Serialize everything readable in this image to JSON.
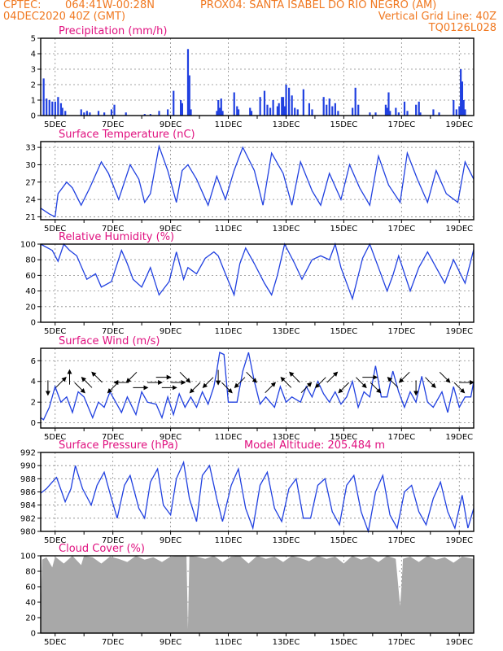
{
  "header": {
    "line1_left": "CPTEC:",
    "line1_mid": "064:41W-00:28N",
    "line1_right": "PROX04: SANTA ISABEL DO RIO NEGRO (AM)",
    "line2_left": "04DEC2020 40Z (GMT)",
    "line2_right": "Vertical Grid Line: 40Z",
    "line3_right": "TQ0126L028"
  },
  "colors": {
    "header": "#f07820",
    "title": "#e0107f",
    "line": "#2040e0",
    "cloud": "#a8a8a8",
    "grid": "#888888"
  },
  "chart_data": [
    {
      "type": "bar",
      "title": "Precipitation (mm/h)",
      "ylim": [
        0,
        5
      ],
      "yticks": [
        0,
        1,
        2,
        3,
        4,
        5
      ],
      "x_labels": [
        "5DEC",
        "7DEC",
        "9DEC",
        "11DEC",
        "13DEC",
        "15DEC",
        "17DEC",
        "19DEC"
      ],
      "x_days": [
        4.5,
        19.5
      ],
      "x_label_days": [
        5,
        7,
        9,
        11,
        13,
        15,
        17,
        19
      ],
      "series": [
        {
          "x": [
            4.6,
            4.7,
            4.8,
            4.9,
            5.0,
            5.1,
            5.2,
            5.25,
            5.35,
            5.9,
            6.0,
            6.1,
            6.2,
            6.5,
            6.7,
            6.95,
            7.05,
            7.45,
            8.1,
            8.3,
            8.6,
            8.9,
            9.1,
            9.35,
            9.4,
            9.6,
            9.65,
            9.7,
            10.6,
            10.65,
            10.7,
            10.75,
            10.8,
            11.2,
            11.3,
            11.35,
            11.75,
            11.8,
            12.1,
            12.25,
            12.35,
            12.45,
            12.55,
            12.7,
            12.75,
            12.85,
            12.9,
            12.95,
            13.0,
            13.1,
            13.2,
            13.3,
            13.4,
            13.6,
            13.8,
            13.9,
            14.3,
            14.4,
            14.5,
            14.6,
            14.7,
            14.8,
            15.3,
            15.4,
            15.5,
            15.9,
            16.1,
            16.45,
            16.5,
            16.55,
            16.6,
            16.8,
            16.9,
            17.1,
            17.2,
            17.5,
            17.6,
            17.65,
            18.1,
            18.3,
            18.8,
            18.9,
            19.0,
            19.05,
            19.1,
            19.15,
            19.2
          ],
          "values": [
            2.4,
            1.1,
            1.0,
            0.9,
            0.9,
            1.2,
            0.8,
            0.5,
            0.3,
            0.4,
            0.2,
            0.3,
            0.2,
            0.3,
            0.2,
            0.4,
            0.7,
            0.2,
            0.1,
            0.1,
            0.3,
            0.4,
            1.6,
            1.0,
            0.8,
            4.3,
            2.6,
            0.4,
            0.3,
            1.0,
            0.5,
            1.1,
            0.3,
            1.5,
            0.6,
            0.4,
            0.5,
            0.3,
            1.2,
            1.6,
            0.7,
            0.5,
            1.0,
            0.6,
            0.8,
            1.2,
            1.2,
            0.6,
            2.0,
            1.8,
            1.3,
            0.5,
            0.4,
            1.7,
            0.8,
            0.4,
            1.2,
            0.7,
            1.1,
            0.6,
            0.8,
            0.3,
            0.5,
            1.8,
            0.7,
            0.2,
            0.2,
            0.7,
            0.5,
            1.5,
            0.3,
            0.5,
            0.2,
            0.9,
            0.3,
            0.7,
            0.9,
            0.2,
            0.4,
            0.2,
            1.0,
            0.4,
            0.6,
            3.0,
            2.2,
            1.0,
            0.4
          ]
        }
      ]
    },
    {
      "type": "line",
      "title": "Surface Temperature (nC)",
      "ylim": [
        20.5,
        34
      ],
      "yticks": [
        21,
        24,
        27,
        30,
        33
      ],
      "x_labels": [
        "5DEC",
        "7DEC",
        "9DEC",
        "11DEC",
        "13DEC",
        "15DEC",
        "17DEC",
        "19DEC"
      ],
      "series": [
        {
          "x": [
            4.5,
            4.8,
            5.0,
            5.1,
            5.4,
            5.6,
            5.9,
            6.2,
            6.6,
            6.85,
            7.2,
            7.6,
            7.9,
            8.1,
            8.3,
            8.6,
            8.9,
            9.2,
            9.4,
            9.6,
            9.9,
            10.3,
            10.6,
            10.9,
            11.2,
            11.5,
            11.9,
            12.2,
            12.5,
            12.9,
            13.2,
            13.5,
            13.9,
            14.2,
            14.5,
            14.9,
            15.2,
            15.55,
            15.9,
            16.2,
            16.55,
            16.95,
            17.2,
            17.55,
            17.9,
            18.2,
            18.55,
            18.95,
            19.2,
            19.5
          ],
          "values": [
            22.5,
            21.5,
            21.0,
            25.0,
            27.0,
            26.0,
            23.0,
            26.0,
            30.5,
            28.5,
            24.0,
            30.0,
            27.5,
            23.5,
            25.0,
            33.2,
            29.0,
            23.5,
            29.0,
            30.0,
            27.5,
            23.0,
            28.0,
            24.0,
            29.0,
            33.0,
            29.0,
            23.0,
            32.0,
            28.5,
            23.0,
            30.5,
            25.5,
            23.0,
            28.5,
            24.0,
            30.0,
            26.0,
            23.0,
            31.5,
            26.5,
            23.5,
            32.0,
            27.5,
            23.5,
            29.0,
            25.0,
            23.5,
            30.5,
            27.5
          ]
        }
      ]
    },
    {
      "type": "line",
      "title": "Relative Humidity (%)",
      "ylim": [
        0,
        100
      ],
      "yticks": [
        0,
        20,
        40,
        60,
        80,
        100
      ],
      "x_labels": [
        "5DEC",
        "7DEC",
        "9DEC",
        "11DEC",
        "13DEC",
        "15DEC",
        "17DEC",
        "19DEC"
      ],
      "series": [
        {
          "x": [
            4.5,
            4.9,
            5.1,
            5.3,
            5.5,
            5.75,
            6.1,
            6.4,
            6.6,
            6.95,
            7.3,
            7.5,
            7.7,
            8.0,
            8.3,
            8.6,
            8.95,
            9.2,
            9.45,
            9.6,
            9.9,
            10.2,
            10.5,
            10.65,
            10.9,
            11.2,
            11.4,
            11.6,
            11.9,
            12.25,
            12.5,
            12.7,
            12.95,
            13.3,
            13.55,
            13.9,
            14.2,
            14.5,
            14.7,
            14.9,
            15.3,
            15.65,
            15.9,
            16.2,
            16.5,
            16.7,
            16.9,
            17.3,
            17.6,
            17.9,
            18.2,
            18.5,
            18.8,
            19.2,
            19.5
          ],
          "values": [
            100,
            92,
            78,
            100,
            92,
            85,
            55,
            62,
            45,
            52,
            92,
            75,
            55,
            45,
            70,
            35,
            52,
            90,
            55,
            70,
            62,
            82,
            90,
            85,
            62,
            35,
            75,
            95,
            75,
            50,
            35,
            60,
            100,
            75,
            55,
            80,
            85,
            80,
            100,
            70,
            30,
            82,
            100,
            70,
            40,
            60,
            85,
            40,
            70,
            90,
            70,
            50,
            80,
            50,
            93
          ]
        }
      ]
    },
    {
      "type": "line",
      "title": "Surface Wind (m/s)",
      "ylim": [
        -0.5,
        7.2
      ],
      "yticks": [
        0,
        2,
        4,
        6
      ],
      "x_labels": [
        "5DEC",
        "7DEC",
        "9DEC",
        "11DEC",
        "13DEC",
        "15DEC",
        "17DEC",
        "19DEC"
      ],
      "series": [
        {
          "x": [
            4.5,
            4.6,
            4.8,
            5.0,
            5.2,
            5.4,
            5.6,
            5.8,
            6.0,
            6.3,
            6.5,
            6.7,
            6.9,
            7.1,
            7.3,
            7.5,
            7.8,
            8.0,
            8.2,
            8.5,
            8.7,
            8.9,
            9.1,
            9.3,
            9.5,
            9.7,
            9.9,
            10.1,
            10.3,
            10.5,
            10.6,
            10.7,
            10.85,
            11.0,
            11.3,
            11.5,
            11.7,
            11.9,
            12.1,
            12.3,
            12.6,
            12.8,
            13.0,
            13.2,
            13.5,
            13.7,
            13.9,
            14.1,
            14.3,
            14.5,
            14.7,
            14.9,
            15.1,
            15.3,
            15.5,
            15.7,
            15.9,
            16.1,
            16.3,
            16.5,
            16.7,
            16.9,
            17.1,
            17.3,
            17.5,
            17.7,
            17.9,
            18.1,
            18.4,
            18.6,
            18.8,
            19.0,
            19.2,
            19.4,
            19.5
          ],
          "values": [
            0.5,
            0.3,
            1.5,
            3.5,
            2.0,
            2.5,
            1.0,
            3.0,
            2.5,
            0.5,
            2.0,
            1.5,
            3.0,
            2.0,
            1.0,
            2.5,
            0.8,
            3.0,
            2.0,
            1.8,
            0.5,
            2.5,
            0.8,
            2.8,
            1.5,
            2.5,
            1.5,
            3.0,
            1.8,
            3.5,
            5.0,
            6.8,
            6.6,
            2.0,
            2.0,
            5.0,
            6.8,
            4.0,
            1.8,
            2.5,
            1.5,
            3.5,
            2.0,
            2.5,
            2.0,
            3.5,
            2.5,
            4.0,
            2.8,
            2.0,
            3.0,
            1.8,
            2.5,
            4.0,
            1.5,
            3.0,
            2.5,
            5.5,
            2.5,
            2.5,
            5.0,
            3.0,
            1.5,
            3.0,
            2.0,
            4.5,
            2.0,
            1.5,
            3.0,
            1.0,
            3.5,
            1.5,
            2.5,
            2.5,
            4.0
          ]
        }
      ],
      "vectors": [
        {
          "x": 4.75,
          "dir": "S"
        },
        {
          "x": 5.2,
          "dir": "NE"
        },
        {
          "x": 5.5,
          "dir": "N"
        },
        {
          "x": 5.85,
          "dir": "SE"
        },
        {
          "x": 6.1,
          "dir": "NW"
        },
        {
          "x": 6.45,
          "dir": "NW"
        },
        {
          "x": 7.0,
          "dir": "SW"
        },
        {
          "x": 7.3,
          "dir": "W"
        },
        {
          "x": 7.65,
          "dir": "SW"
        },
        {
          "x": 7.95,
          "dir": "E"
        },
        {
          "x": 8.45,
          "dir": "E"
        },
        {
          "x": 8.75,
          "dir": "E"
        },
        {
          "x": 8.95,
          "dir": "E"
        },
        {
          "x": 9.25,
          "dir": "E"
        },
        {
          "x": 9.5,
          "dir": "SE"
        },
        {
          "x": 9.85,
          "dir": "SW"
        },
        {
          "x": 10.3,
          "dir": "SW"
        },
        {
          "x": 10.65,
          "dir": "S"
        },
        {
          "x": 10.95,
          "dir": "SE"
        },
        {
          "x": 11.4,
          "dir": "SW"
        },
        {
          "x": 11.8,
          "dir": "SE"
        },
        {
          "x": 12.45,
          "dir": "NE"
        },
        {
          "x": 13.0,
          "dir": "NW"
        },
        {
          "x": 13.3,
          "dir": "NW"
        },
        {
          "x": 13.7,
          "dir": "NE"
        },
        {
          "x": 14.2,
          "dir": "SW"
        },
        {
          "x": 14.6,
          "dir": "NE"
        },
        {
          "x": 15.0,
          "dir": "SW"
        },
        {
          "x": 15.6,
          "dir": "SE"
        },
        {
          "x": 15.9,
          "dir": "E"
        },
        {
          "x": 16.1,
          "dir": "SE"
        },
        {
          "x": 16.7,
          "dir": "NW"
        },
        {
          "x": 17.1,
          "dir": "SW"
        },
        {
          "x": 17.5,
          "dir": "S"
        },
        {
          "x": 18.0,
          "dir": "SE"
        },
        {
          "x": 18.5,
          "dir": "SE"
        },
        {
          "x": 19.0,
          "dir": "SE"
        },
        {
          "x": 19.25,
          "dir": "E"
        }
      ]
    },
    {
      "type": "line",
      "title": "Surface Pressure (hPa)",
      "annotation": "Model Altitude: 205.484 m",
      "ylim": [
        980,
        992
      ],
      "yticks": [
        980,
        982,
        984,
        986,
        988,
        990,
        992
      ],
      "x_labels": [
        "5DEC",
        "7DEC",
        "9DEC",
        "11DEC",
        "13DEC",
        "15DEC",
        "17DEC",
        "19DEC"
      ],
      "series": [
        {
          "x": [
            4.5,
            4.7,
            4.9,
            5.05,
            5.35,
            5.55,
            5.7,
            5.95,
            6.25,
            6.45,
            6.7,
            6.95,
            7.15,
            7.4,
            7.6,
            7.9,
            8.1,
            8.3,
            8.55,
            8.75,
            9.0,
            9.2,
            9.45,
            9.65,
            9.9,
            10.1,
            10.35,
            10.6,
            10.8,
            11.1,
            11.35,
            11.6,
            11.85,
            12.1,
            12.35,
            12.6,
            12.85,
            13.1,
            13.35,
            13.6,
            13.85,
            14.1,
            14.35,
            14.6,
            14.85,
            15.1,
            15.35,
            15.6,
            15.85,
            16.1,
            16.35,
            16.6,
            16.85,
            17.1,
            17.35,
            17.6,
            17.85,
            18.1,
            18.35,
            18.6,
            18.85,
            19.1,
            19.3,
            19.5
          ],
          "values": [
            985.8,
            986.5,
            987.5,
            988.2,
            984.5,
            986.5,
            990.0,
            986.5,
            984.0,
            987.0,
            989.0,
            985.0,
            982.0,
            987.0,
            988.5,
            983.5,
            982.0,
            987.5,
            989.5,
            984.0,
            982.5,
            988.0,
            990.5,
            985.0,
            981.5,
            988.5,
            990.0,
            985.0,
            981.5,
            987.0,
            989.5,
            983.5,
            980.5,
            987.0,
            989.0,
            983.5,
            981.5,
            986.5,
            988.0,
            982.0,
            982.0,
            987.0,
            988.0,
            983.0,
            981.0,
            987.0,
            988.5,
            983.0,
            980.0,
            986.0,
            988.5,
            982.5,
            980.5,
            986.0,
            987.0,
            983.0,
            981.0,
            985.0,
            987.5,
            983.0,
            980.5,
            985.5,
            980.5,
            983.5
          ]
        }
      ]
    },
    {
      "type": "area",
      "title": "Cloud Cover (%)",
      "ylim": [
        0,
        100
      ],
      "yticks": [
        0,
        20,
        40,
        60,
        80,
        100
      ],
      "x_labels": [
        "5DEC",
        "7DEC",
        "9DEC",
        "11DEC",
        "13DEC",
        "15DEC",
        "17DEC",
        "19DEC"
      ],
      "series": [
        {
          "x": [
            4.5,
            4.55,
            4.7,
            4.9,
            5.0,
            5.3,
            5.6,
            5.9,
            6.0,
            6.3,
            6.6,
            6.9,
            7.2,
            7.5,
            7.8,
            8.1,
            8.4,
            8.7,
            9.0,
            9.3,
            9.55,
            9.6,
            9.65,
            9.9,
            10.2,
            10.5,
            10.8,
            11.1,
            11.4,
            11.7,
            12.0,
            12.3,
            12.6,
            12.9,
            13.2,
            13.5,
            13.8,
            14.1,
            14.4,
            14.7,
            15.0,
            15.3,
            15.6,
            15.9,
            16.2,
            16.5,
            16.8,
            16.95,
            17.0,
            17.05,
            17.3,
            17.6,
            17.9,
            18.2,
            18.5,
            18.8,
            19.1,
            19.5
          ],
          "values": [
            30,
            95,
            98,
            85,
            99,
            90,
            100,
            88,
            100,
            98,
            90,
            99,
            96,
            92,
            100,
            95,
            98,
            92,
            99,
            100,
            100,
            5,
            100,
            99,
            96,
            100,
            92,
            99,
            100,
            90,
            100,
            96,
            99,
            92,
            100,
            97,
            93,
            100,
            96,
            99,
            90,
            100,
            95,
            99,
            92,
            100,
            96,
            35,
            60,
            96,
            99,
            92,
            100,
            95,
            98,
            91,
            99,
            96
          ]
        }
      ]
    }
  ]
}
